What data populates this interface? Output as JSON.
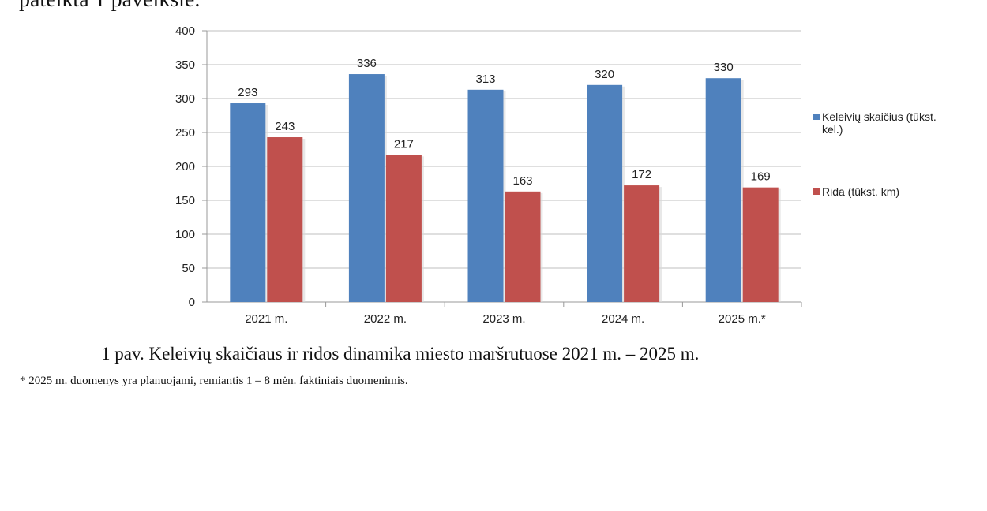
{
  "top_text": "pateikta 1 paveiksle.",
  "chart_data": {
    "type": "bar",
    "categories": [
      "2021 m.",
      "2022 m.",
      "2023 m.",
      "2024 m.",
      "2025 m.*"
    ],
    "series": [
      {
        "name": "Keleivių skaičius (tūkst. kel.)",
        "color": "#4f81bd",
        "values": [
          293,
          336,
          313,
          320,
          330
        ]
      },
      {
        "name": "Rida (tūkst. km)",
        "color": "#c0504d",
        "values": [
          243,
          217,
          163,
          172,
          169
        ]
      }
    ],
    "ylim": [
      0,
      400
    ],
    "yticks": [
      0,
      50,
      100,
      150,
      200,
      250,
      300,
      350,
      400
    ],
    "grid": true,
    "legend": "right",
    "title": "",
    "xlabel": "",
    "ylabel": ""
  },
  "caption": "1 pav. Keleivių skaičiaus ir ridos dinamika miesto maršrutuose 2021 m. – 2025 m.",
  "footnote": "* 2025 m. duomenys yra planuojami, remiantis 1 – 8 mėn. faktiniais duomenimis."
}
